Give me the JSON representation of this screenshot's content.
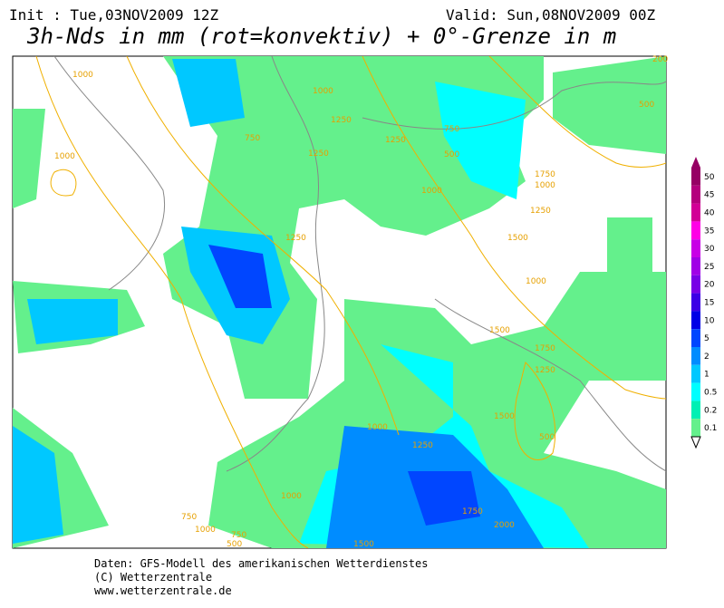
{
  "header": {
    "init": "Init : Tue,03NOV2009 12Z",
    "valid": "Valid: Sun,08NOV2009 00Z",
    "title": "3h-Nds in mm (rot=konvektiv) + 0°-Grenze in m"
  },
  "legend": {
    "levels": [
      {
        "label": "50",
        "color": "#960064"
      },
      {
        "label": "45",
        "color": "#b4007d"
      },
      {
        "label": "40",
        "color": "#d20096"
      },
      {
        "label": "35",
        "color": "#ff00e6"
      },
      {
        "label": "30",
        "color": "#c800e6"
      },
      {
        "label": "25",
        "color": "#a000e6"
      },
      {
        "label": "20",
        "color": "#7800e6"
      },
      {
        "label": "15",
        "color": "#3c00e6"
      },
      {
        "label": "10",
        "color": "#0000e6"
      },
      {
        "label": "5",
        "color": "#0046ff"
      },
      {
        "label": "2",
        "color": "#008cff"
      },
      {
        "label": "1",
        "color": "#00c8ff"
      },
      {
        "label": "0.5",
        "color": "#00ffff"
      },
      {
        "label": "0.2",
        "color": "#00f0b4"
      },
      {
        "label": "0.1",
        "color": "#64f08c"
      }
    ]
  },
  "map": {
    "contour_labels": [
      "1000",
      "1000",
      "750",
      "1250",
      "1250",
      "1000",
      "750",
      "1000",
      "500",
      "1750",
      "1250",
      "1000",
      "1250",
      "1500",
      "1000",
      "1250",
      "1500",
      "1750",
      "1250",
      "1500",
      "1000",
      "1250",
      "500",
      "1000",
      "750",
      "2000",
      "1750",
      "1500",
      "1000",
      "750",
      "500",
      "200",
      "500"
    ]
  },
  "footer": {
    "lines": [
      "Daten: GFS-Modell des amerikanischen Wetterdienstes",
      "(C) Wetterzentrale",
      "www.wetterzentrale.de"
    ]
  }
}
